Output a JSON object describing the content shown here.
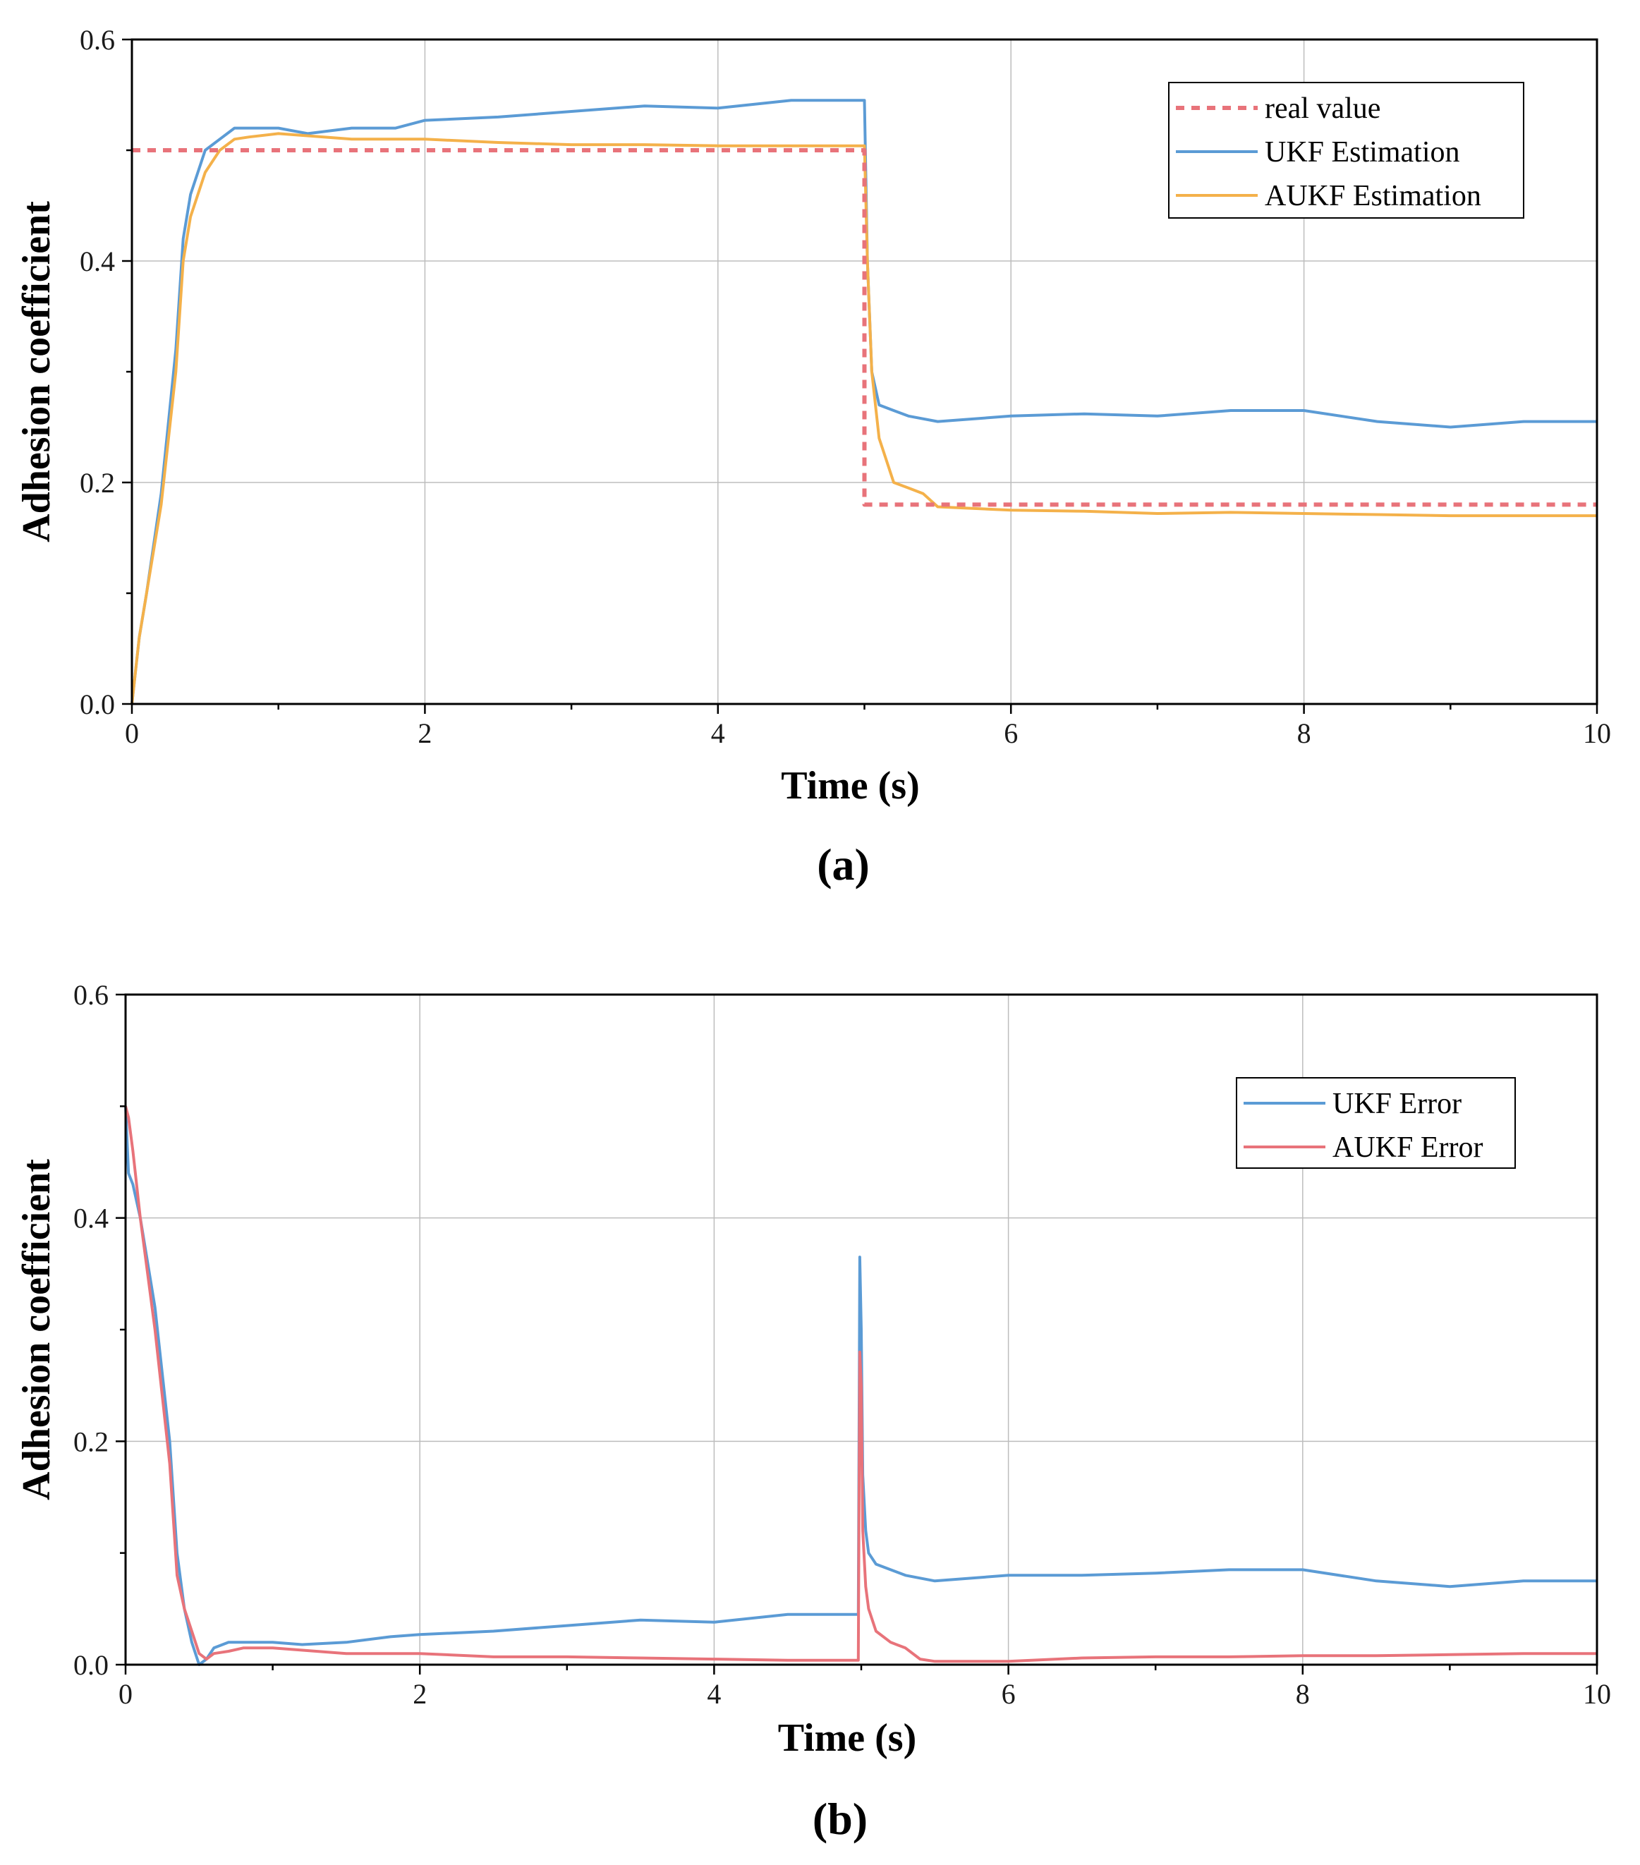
{
  "chart_data": [
    {
      "type": "line",
      "panel_label": "(a)",
      "xlabel": "Time (s)",
      "ylabel": "Adhesion coefficient",
      "xlim": [
        0,
        10
      ],
      "ylim": [
        0,
        0.6
      ],
      "x_ticks": [
        0,
        2,
        4,
        6,
        8,
        10
      ],
      "x_tick_labels": [
        "0",
        "2",
        "4",
        "6",
        "8",
        "10"
      ],
      "y_ticks": [
        0.0,
        0.2,
        0.4,
        0.6
      ],
      "y_tick_labels": [
        "0.0",
        "0.2",
        "0.4",
        "0.6"
      ],
      "grid": true,
      "legend_position": "top-right",
      "series": [
        {
          "name": "real value",
          "color": "#e8737a",
          "dashed": true,
          "x": [
            0.0,
            5.0,
            5.0,
            10.0
          ],
          "y": [
            0.5,
            0.5,
            0.18,
            0.18
          ]
        },
        {
          "name": "UKF Estimation",
          "color": "#5b9bd5",
          "dashed": false,
          "x": [
            0.0,
            0.05,
            0.1,
            0.2,
            0.3,
            0.35,
            0.4,
            0.5,
            0.6,
            0.7,
            0.8,
            1.0,
            1.2,
            1.5,
            1.8,
            2.0,
            2.5,
            3.0,
            3.5,
            4.0,
            4.5,
            4.95,
            5.0,
            5.02,
            5.05,
            5.1,
            5.2,
            5.3,
            5.5,
            6.0,
            6.5,
            7.0,
            7.5,
            8.0,
            8.5,
            9.0,
            9.5,
            10.0
          ],
          "y": [
            0.0,
            0.06,
            0.1,
            0.19,
            0.32,
            0.42,
            0.46,
            0.5,
            0.51,
            0.52,
            0.52,
            0.52,
            0.515,
            0.52,
            0.52,
            0.527,
            0.53,
            0.535,
            0.54,
            0.538,
            0.545,
            0.545,
            0.545,
            0.4,
            0.3,
            0.27,
            0.265,
            0.26,
            0.255,
            0.26,
            0.262,
            0.26,
            0.265,
            0.265,
            0.255,
            0.25,
            0.255,
            0.255
          ]
        },
        {
          "name": "AUKF Estimation",
          "color": "#f4b14a",
          "dashed": false,
          "x": [
            0.0,
            0.05,
            0.1,
            0.2,
            0.3,
            0.35,
            0.4,
            0.5,
            0.6,
            0.7,
            0.8,
            1.0,
            1.5,
            2.0,
            2.5,
            3.0,
            3.5,
            4.0,
            4.5,
            4.95,
            5.0,
            5.02,
            5.05,
            5.1,
            5.2,
            5.3,
            5.4,
            5.5,
            6.0,
            6.5,
            7.0,
            7.5,
            8.0,
            8.5,
            9.0,
            9.5,
            10.0
          ],
          "y": [
            0.0,
            0.06,
            0.1,
            0.18,
            0.3,
            0.4,
            0.44,
            0.48,
            0.5,
            0.51,
            0.512,
            0.515,
            0.51,
            0.51,
            0.507,
            0.505,
            0.505,
            0.504,
            0.504,
            0.504,
            0.504,
            0.4,
            0.3,
            0.24,
            0.2,
            0.195,
            0.19,
            0.178,
            0.175,
            0.174,
            0.172,
            0.173,
            0.172,
            0.171,
            0.17,
            0.17,
            0.17
          ]
        }
      ]
    },
    {
      "type": "line",
      "panel_label": "(b)",
      "xlabel": "Time (s)",
      "ylabel": "Adhesion coefficient",
      "xlim": [
        0,
        10
      ],
      "ylim": [
        0,
        0.6
      ],
      "x_ticks": [
        0,
        2,
        4,
        6,
        8,
        10
      ],
      "x_tick_labels": [
        "0",
        "2",
        "4",
        "6",
        "8",
        "10"
      ],
      "y_ticks": [
        0.0,
        0.2,
        0.4,
        0.6
      ],
      "y_tick_labels": [
        "0.0",
        "0.2",
        "0.4",
        "0.6"
      ],
      "grid": true,
      "legend_position": "top-right",
      "series": [
        {
          "name": "UKF Error",
          "color": "#5b9bd5",
          "dashed": false,
          "x": [
            0.0,
            0.02,
            0.05,
            0.1,
            0.2,
            0.3,
            0.35,
            0.4,
            0.45,
            0.5,
            0.55,
            0.6,
            0.7,
            0.8,
            1.0,
            1.2,
            1.5,
            1.8,
            2.0,
            2.5,
            3.0,
            3.5,
            4.0,
            4.5,
            4.95,
            4.98,
            4.99,
            5.0,
            5.01,
            5.03,
            5.05,
            5.1,
            5.2,
            5.3,
            5.5,
            6.0,
            6.5,
            7.0,
            7.5,
            8.0,
            8.5,
            9.0,
            9.5,
            10.0
          ],
          "y": [
            0.5,
            0.44,
            0.43,
            0.4,
            0.32,
            0.2,
            0.1,
            0.05,
            0.02,
            0.0,
            0.005,
            0.015,
            0.02,
            0.02,
            0.02,
            0.018,
            0.02,
            0.025,
            0.027,
            0.03,
            0.035,
            0.04,
            0.038,
            0.045,
            0.045,
            0.045,
            0.365,
            0.3,
            0.17,
            0.12,
            0.1,
            0.09,
            0.085,
            0.08,
            0.075,
            0.08,
            0.08,
            0.082,
            0.085,
            0.085,
            0.075,
            0.07,
            0.075,
            0.075
          ]
        },
        {
          "name": "AUKF Error",
          "color": "#e8737a",
          "dashed": false,
          "x": [
            0.0,
            0.02,
            0.05,
            0.1,
            0.2,
            0.3,
            0.35,
            0.4,
            0.45,
            0.5,
            0.55,
            0.6,
            0.7,
            0.8,
            1.0,
            1.5,
            2.0,
            2.5,
            3.0,
            3.5,
            4.0,
            4.5,
            4.98,
            4.99,
            5.0,
            5.01,
            5.03,
            5.05,
            5.1,
            5.2,
            5.3,
            5.4,
            5.5,
            6.0,
            6.5,
            7.0,
            7.5,
            8.0,
            8.5,
            9.0,
            9.5,
            10.0
          ],
          "y": [
            0.5,
            0.49,
            0.46,
            0.4,
            0.3,
            0.18,
            0.08,
            0.05,
            0.03,
            0.01,
            0.005,
            0.01,
            0.012,
            0.015,
            0.015,
            0.01,
            0.01,
            0.007,
            0.007,
            0.006,
            0.005,
            0.004,
            0.004,
            0.28,
            0.25,
            0.12,
            0.07,
            0.05,
            0.03,
            0.02,
            0.015,
            0.005,
            0.003,
            0.003,
            0.006,
            0.007,
            0.007,
            0.008,
            0.008,
            0.009,
            0.01,
            0.01
          ]
        }
      ]
    }
  ]
}
